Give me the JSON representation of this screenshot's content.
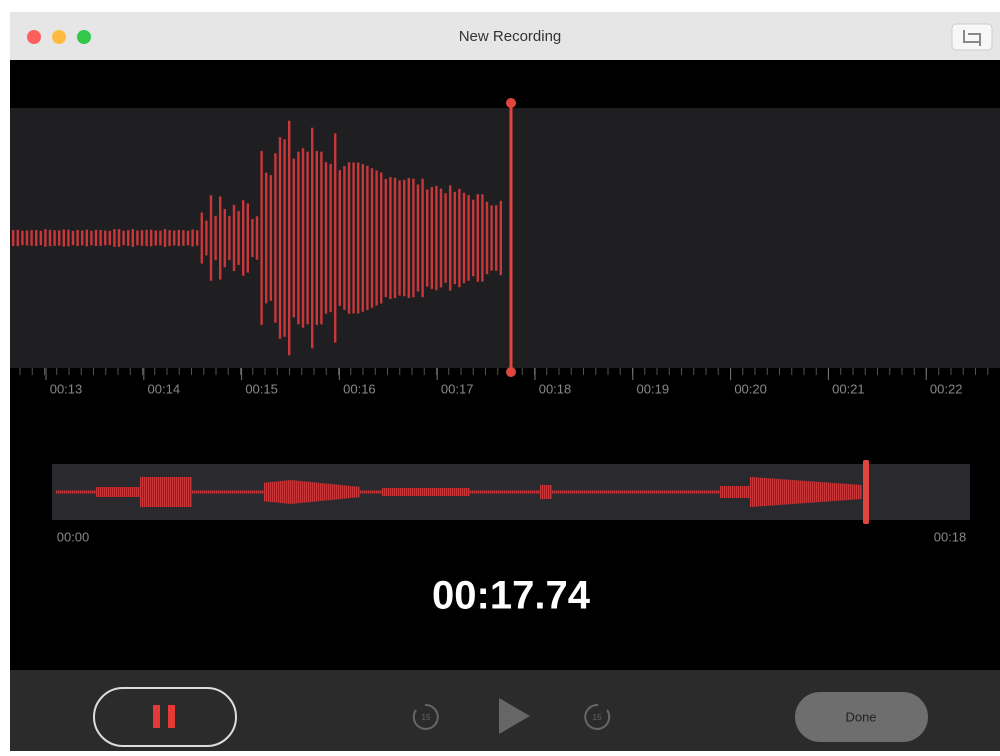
{
  "window": {
    "title": "New Recording"
  },
  "timeline": {
    "labels": [
      "00:13",
      "00:14",
      "00:15",
      "00:16",
      "00:17",
      "00:18",
      "00:19",
      "00:20",
      "00:21",
      "00:22"
    ]
  },
  "overview": {
    "start_label": "00:00",
    "end_label": "00:18"
  },
  "timer": "00:17.74",
  "controls": {
    "skip_back": "15",
    "skip_forward": "15",
    "done": "Done"
  }
}
